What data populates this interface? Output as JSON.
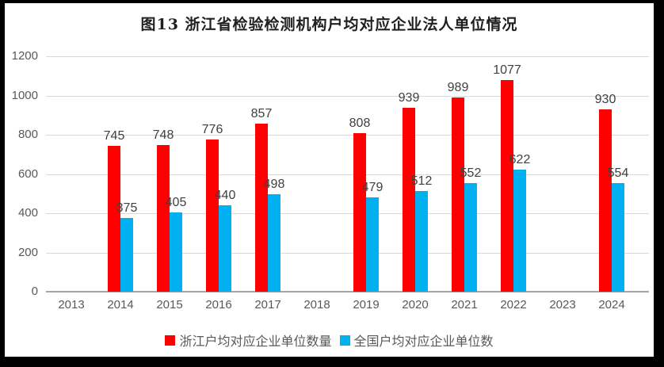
{
  "window": {
    "background_color": "#000000",
    "chart_background_color": "#ffffff"
  },
  "chart_data": {
    "type": "bar",
    "title": "图13 浙江省检验检测机构户均对应企业法人单位情况",
    "categories": [
      "2013",
      "2014",
      "2015",
      "2016",
      "2017",
      "2018",
      "2019",
      "2020",
      "2021",
      "2022",
      "2023",
      "2024"
    ],
    "series": [
      {
        "name": "浙江户均对应企业单位数量",
        "color": "#ff0000",
        "values": [
          null,
          745,
          748,
          776,
          857,
          null,
          808,
          939,
          989,
          1077,
          null,
          930
        ]
      },
      {
        "name": "全国户均对应企业单位数",
        "color": "#00b0f0",
        "values": [
          null,
          375,
          405,
          440,
          498,
          null,
          479,
          512,
          552,
          622,
          null,
          554
        ]
      }
    ],
    "xlabel": "",
    "ylabel": "",
    "ylim": [
      0,
      1200
    ],
    "ytick_step": 200,
    "yticks": [
      "0",
      "200",
      "400",
      "600",
      "800",
      "1000",
      "1200"
    ],
    "grid": true,
    "grid_color": "#d9d9d9",
    "axis_line_color": "#a6a6a6",
    "data_label_color": "#404040",
    "tick_label_color": "#595959",
    "legend_position": "bottom"
  }
}
